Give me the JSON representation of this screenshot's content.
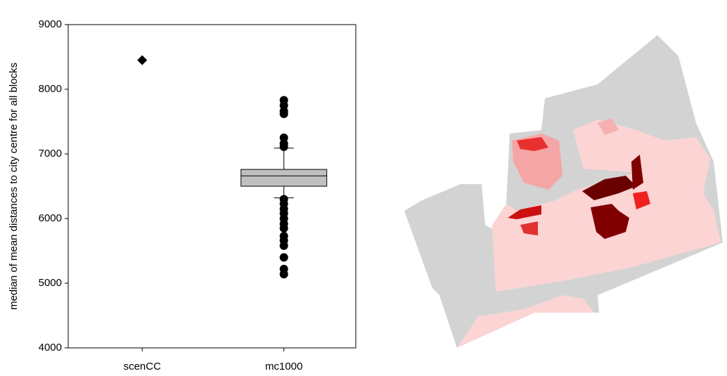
{
  "chart_data": {
    "type": "box",
    "ylabel": "median of mean distances to city centre for all blocks",
    "categories": [
      "scenCC",
      "mc1000"
    ],
    "ylim": [
      4000,
      9000
    ],
    "yticks": [
      4000,
      5000,
      6000,
      7000,
      8000,
      9000
    ],
    "box_color": "#c0c0c0",
    "marker_color": "#000000",
    "data": [
      {
        "marker": "diamond",
        "values": [
          8450
        ]
      },
      {
        "whisker_low": 6320,
        "q1": 6500,
        "median": 6660,
        "q3": 6760,
        "whisker_high": 7090,
        "outliers": [
          7830,
          7750,
          7660,
          7620,
          7250,
          7160,
          7110,
          6300,
          6230,
          6150,
          6080,
          6000,
          5920,
          5850,
          5730,
          5660,
          5580,
          5400,
          5220,
          5140
        ]
      }
    ]
  }
}
